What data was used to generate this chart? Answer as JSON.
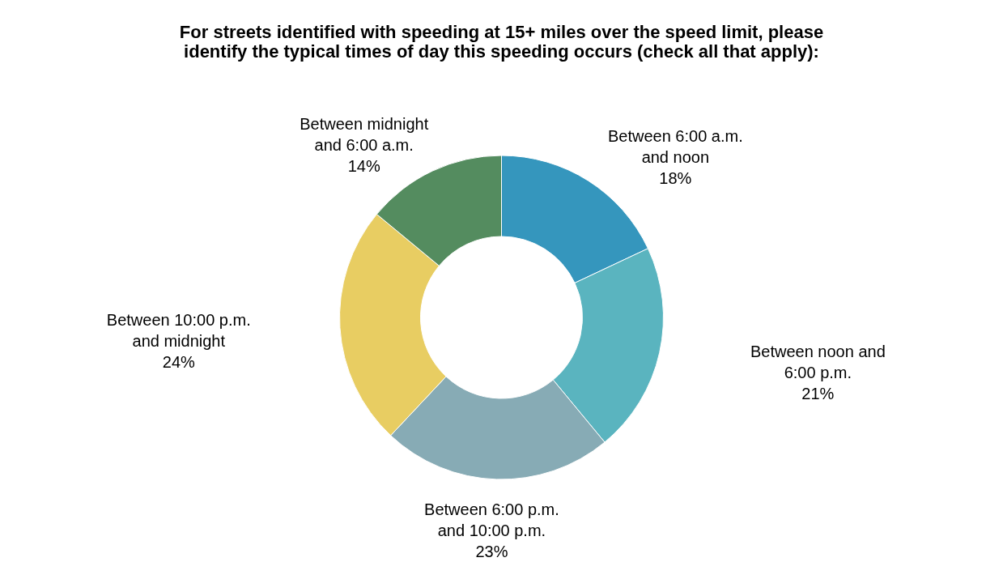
{
  "chart_data": {
    "type": "donut",
    "title": "For streets identified with speeding at 15+ miles over the speed limit, please identify the typical times of day this speeding occurs (check all that apply):",
    "categories": [
      "Between 6:00 a.m. and noon",
      "Between noon and 6:00 p.m.",
      "Between 6:00 p.m. and 10:00 p.m.",
      "Between 10:00 p.m. and midnight",
      "Between midnight and 6:00 a.m."
    ],
    "values": [
      18,
      21,
      23,
      24,
      14
    ],
    "value_labels": [
      "18%",
      "21%",
      "23%",
      "24%",
      "14%"
    ],
    "colors": [
      "#3596bd",
      "#5ab4bf",
      "#87abb5",
      "#e8cd62",
      "#548c5f"
    ],
    "legend": false
  }
}
